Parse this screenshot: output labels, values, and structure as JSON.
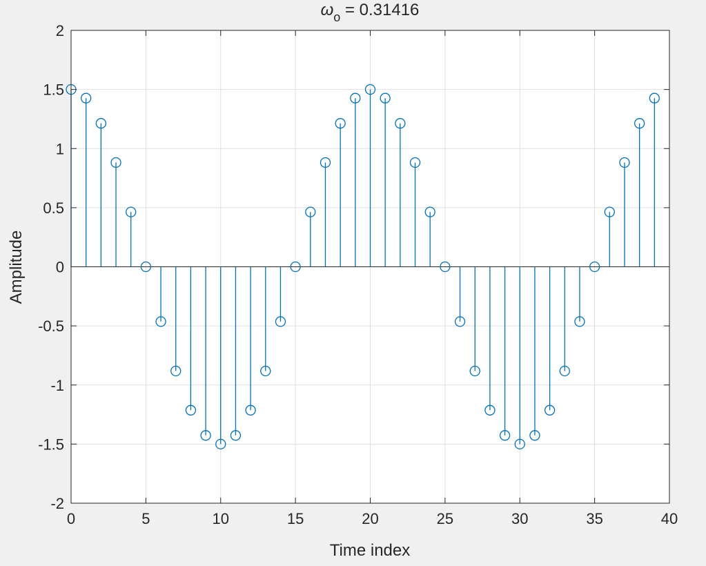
{
  "chart_data": {
    "type": "stem",
    "title": "ω",
    "title_sub": "o",
    "title_rest": " = 0.31416",
    "xlabel": "Time index",
    "ylabel": "Amplitude",
    "xlim": [
      0,
      40
    ],
    "ylim": [
      -2,
      2
    ],
    "xticks": [
      0,
      5,
      10,
      15,
      20,
      25,
      30,
      35,
      40
    ],
    "xtick_labels": [
      "0",
      "5",
      "10",
      "15",
      "20",
      "25",
      "30",
      "35",
      "40"
    ],
    "yticks": [
      -2,
      -1.5,
      -1,
      -0.5,
      0,
      0.5,
      1,
      1.5,
      2
    ],
    "ytick_labels": [
      "-2",
      "-1.5",
      "-1",
      "-0.5",
      "0",
      "0.5",
      "1",
      "1.5",
      "2"
    ],
    "grid": true,
    "colors": {
      "series": "#0072bd",
      "axes": "#262626",
      "grid": "#dfdfdf",
      "background": "#ffffff"
    },
    "x": [
      0,
      1,
      2,
      3,
      4,
      5,
      6,
      7,
      8,
      9,
      10,
      11,
      12,
      13,
      14,
      15,
      16,
      17,
      18,
      19,
      20,
      21,
      22,
      23,
      24,
      25,
      26,
      27,
      28,
      29,
      30,
      31,
      32,
      33,
      34,
      35,
      36,
      37,
      38,
      39
    ],
    "values": [
      1.5,
      1.4266,
      1.2135,
      0.8817,
      0.4635,
      0,
      -0.4635,
      -0.8817,
      -1.2135,
      -1.4266,
      -1.5,
      -1.4266,
      -1.2135,
      -0.8817,
      -0.4635,
      0,
      0.4635,
      0.8817,
      1.2135,
      1.4266,
      1.5,
      1.4266,
      1.2135,
      0.8817,
      0.4635,
      0,
      -0.4635,
      -0.8817,
      -1.2135,
      -1.4266,
      -1.5,
      -1.4266,
      -1.2135,
      -0.8817,
      -0.4635,
      0,
      0.4635,
      0.8817,
      1.2135,
      1.4266
    ]
  }
}
